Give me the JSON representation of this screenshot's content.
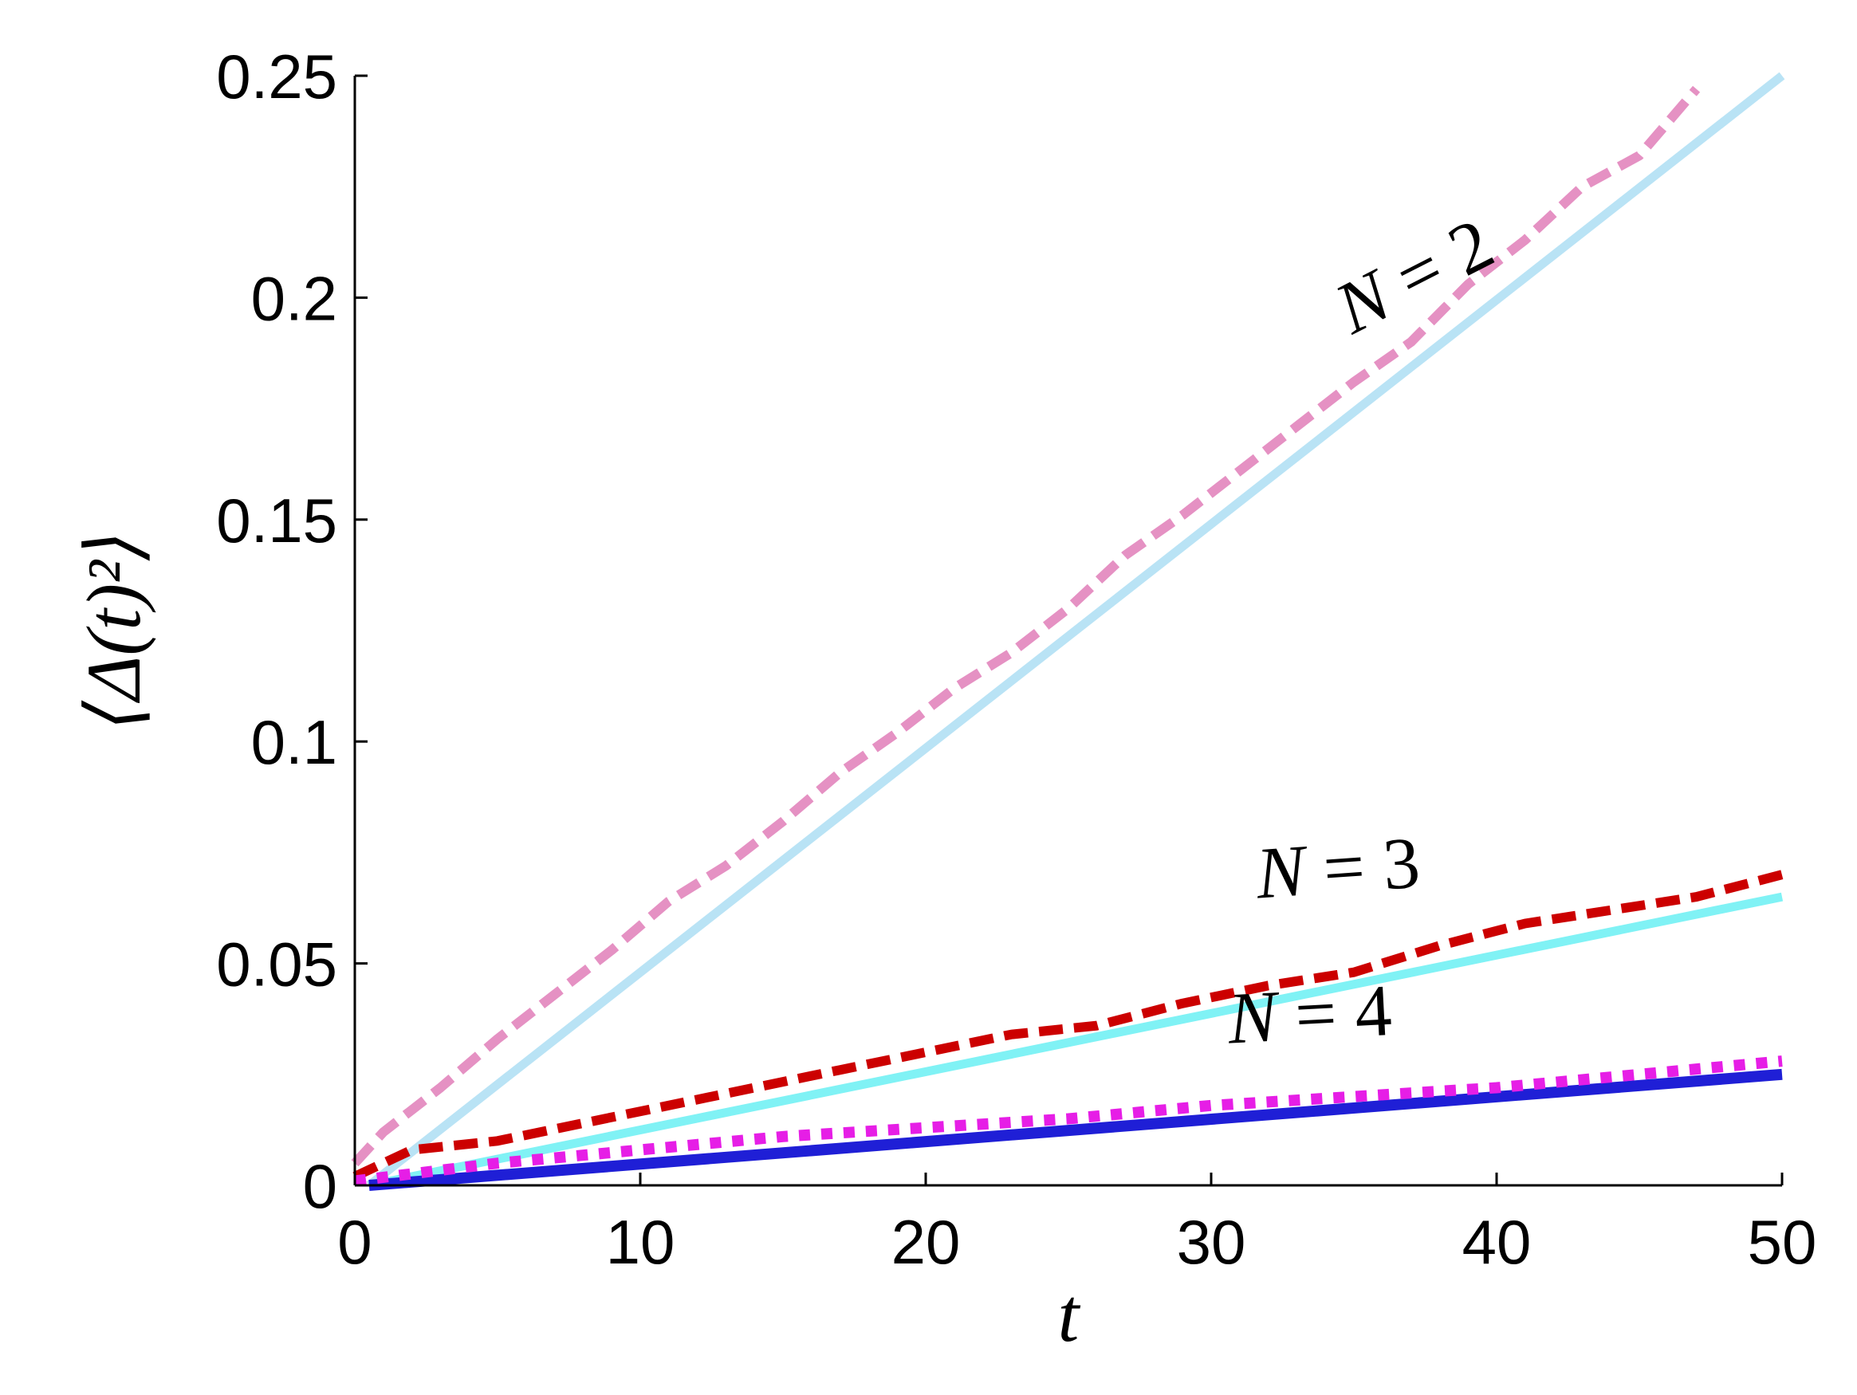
{
  "chart_data": {
    "type": "line",
    "title": "",
    "xlabel": "t",
    "ylabel": "⟨Δ(t)²⟩",
    "xlim": [
      0,
      50
    ],
    "ylim": [
      0,
      0.25
    ],
    "xticks": [
      0,
      10,
      20,
      30,
      40,
      50
    ],
    "xtick_labels": [
      "0",
      "10",
      "20",
      "30",
      "40",
      "50"
    ],
    "yticks": [
      0,
      0.05,
      0.1,
      0.15,
      0.2,
      0.25
    ],
    "ytick_labels": [
      "0",
      "0.05",
      "0.1",
      "0.15",
      "0.2",
      "0.25"
    ],
    "grid": false,
    "legend": "none",
    "annotations": [
      {
        "var": "N",
        "rest": " = 2",
        "x": 37.5,
        "y": 0.2,
        "rotation_deg": -27
      },
      {
        "var": "N",
        "rest": " = 3",
        "x": 34.5,
        "y": 0.066,
        "rotation_deg": -4
      },
      {
        "var": "N",
        "rest": " = 4",
        "x": 33.5,
        "y": 0.033,
        "rotation_deg": -3
      }
    ],
    "series": [
      {
        "style": "solid",
        "color": "#b9e3f5",
        "width": 11,
        "x": [
          0.5,
          50
        ],
        "y": [
          0,
          0.25
        ]
      },
      {
        "style": "dashed",
        "color": "#e591c3",
        "width": 12,
        "x": [
          0,
          1,
          3,
          5,
          7,
          9,
          11,
          13,
          15,
          17,
          19,
          21,
          23,
          25,
          27,
          29,
          31,
          33,
          35,
          37,
          39,
          41,
          43,
          45,
          47
        ],
        "y": [
          0.005,
          0.012,
          0.022,
          0.033,
          0.043,
          0.053,
          0.064,
          0.072,
          0.082,
          0.093,
          0.102,
          0.112,
          0.12,
          0.13,
          0.142,
          0.151,
          0.161,
          0.171,
          0.181,
          0.19,
          0.203,
          0.213,
          0.225,
          0.232,
          0.247
        ]
      },
      {
        "style": "solid",
        "color": "#80f2f5",
        "width": 11,
        "x": [
          0.5,
          50
        ],
        "y": [
          0,
          0.065
        ]
      },
      {
        "style": "dashed",
        "color": "#cc0000",
        "width": 12,
        "x": [
          0,
          2,
          5,
          8,
          11,
          14,
          17,
          20,
          23,
          26,
          29,
          32,
          35,
          38,
          41,
          44,
          47,
          50
        ],
        "y": [
          0.002,
          0.008,
          0.01,
          0.014,
          0.018,
          0.022,
          0.026,
          0.03,
          0.034,
          0.036,
          0.041,
          0.045,
          0.048,
          0.054,
          0.059,
          0.062,
          0.065,
          0.07
        ]
      },
      {
        "style": "solid",
        "color": "#1f1fd6",
        "width": 14,
        "x": [
          0.5,
          50
        ],
        "y": [
          0,
          0.025
        ]
      },
      {
        "style": "dotted",
        "color": "#e61ee6",
        "width": 14,
        "x": [
          0,
          5,
          10,
          15,
          20,
          25,
          30,
          35,
          40,
          45,
          50
        ],
        "y": [
          0.001,
          0.005,
          0.008,
          0.011,
          0.013,
          0.015,
          0.018,
          0.02,
          0.022,
          0.025,
          0.028
        ]
      }
    ]
  }
}
